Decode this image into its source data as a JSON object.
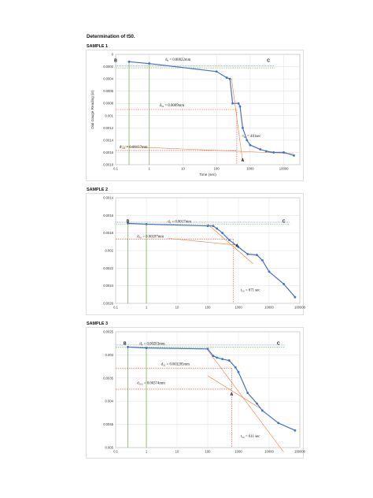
{
  "document": {
    "title": "Determination of t50.",
    "samples": [
      "SAMPLE 1",
      "SAMPLE 2",
      "SAMPLE 3"
    ]
  },
  "colors": {
    "data": "#4472c4",
    "tangent": "#ed7d31",
    "guide": "#70ad47",
    "hline": "#e0443c"
  },
  "chart_data": [
    {
      "type": "line",
      "xscale": "log",
      "xlim": [
        0.1,
        30000
      ],
      "ylim": [
        0,
        0.0018
      ],
      "y_inverted": true,
      "xticks": [
        "0.1",
        "1",
        "10",
        "100",
        "1000",
        "10000"
      ],
      "yticks": [
        "0",
        "0.0002",
        "0.0004",
        "0.0006",
        "0.0008",
        "0.001",
        "0.0012",
        "0.0014",
        "0.0016",
        "0.0018"
      ],
      "xlabel": "Time (sec)",
      "ylabel": "Dial Gauge Reading (in)",
      "x": [
        0.25,
        1,
        100,
        200,
        250,
        300,
        450,
        500,
        600,
        800,
        1000,
        2000,
        3000,
        5000,
        10000,
        20000
      ],
      "y": [
        0.00012,
        0.00015,
        0.00028,
        0.00038,
        0.0004,
        0.0008,
        0.0008,
        0.00085,
        0.0012,
        0.0014,
        0.00148,
        0.00155,
        0.00158,
        0.0016,
        0.0016,
        0.00165
      ],
      "annotations": [
        {
          "text": "d₀ = 0.00022mm",
          "x": 3,
          "y": 0.0001
        },
        {
          "text": "d₅₀ = 0.0009mm",
          "x": 2,
          "y": 0.00085
        },
        {
          "text": "t₅₀ = 401sec",
          "x": 600,
          "y": 0.00135
        },
        {
          "text": "d₁₀₀ = 0.00157mm",
          "x": 0.13,
          "y": 0.00153
        }
      ],
      "points": {
        "B": [
          0.1,
          0.00012
        ],
        "C": [
          3500,
          0.00012
        ],
        "A": [
          600,
          0.00175
        ]
      },
      "guides": {
        "green_x": [
          0.25,
          1
        ],
        "hlines_y": [
          0.00022,
          0.0009,
          0.00157
        ],
        "t50_x": 401
      }
    },
    {
      "type": "line",
      "xscale": "log",
      "xlim": [
        0.1,
        100000
      ],
      "ylim": [
        0.0014,
        0.0026
      ],
      "y_inverted": true,
      "xticks": [
        "0.1",
        "1",
        "10",
        "100",
        "1000",
        "10000",
        "100000"
      ],
      "yticks": [
        "0.0014",
        "0.0016",
        "0.0018",
        "0.002",
        "0.0022",
        "0.0024",
        "0.0026"
      ],
      "xlabel": "",
      "ylabel": "",
      "x": [
        0.25,
        1,
        100,
        150,
        200,
        300,
        500,
        1000,
        2000,
        4000,
        6000,
        10000,
        30000,
        70000
      ],
      "y": [
        0.00169,
        0.0017,
        0.00172,
        0.00172,
        0.00175,
        0.0018,
        0.00188,
        0.00196,
        0.00204,
        0.00205,
        0.00211,
        0.00224,
        0.00238,
        0.00253
      ],
      "annotations": [
        {
          "text": "d₀ = 0.0017mm",
          "x": 5,
          "y": 0.00168
        },
        {
          "text": "d₅₀ = 0.00187mm",
          "x": 0.5,
          "y": 0.00185
        },
        {
          "text": "t₅₀ = 671 sec",
          "x": 1200,
          "y": 0.00246
        }
      ],
      "points": {
        "B": [
          0.25,
          0.00168
        ],
        "C": [
          30000,
          0.00168
        ],
        "A": [
          900,
          0.00196
        ]
      },
      "guides": {
        "green_x": [
          0.25,
          1
        ],
        "hlines_y": [
          0.0017,
          0.00187
        ],
        "t50_x": 671
      }
    },
    {
      "type": "line",
      "xscale": "log",
      "xlim": [
        0.1,
        100000
      ],
      "ylim": [
        0.0025,
        0.005
      ],
      "y_inverted": true,
      "xticks": [
        "0.1",
        "1",
        "10",
        "100",
        "1000",
        "10000",
        "100000"
      ],
      "yticks": [
        "0.0025",
        "0.003",
        "0.0035",
        "0.004",
        "0.0045",
        "0.005"
      ],
      "xlabel": "",
      "ylabel": "",
      "x": [
        0.25,
        1,
        100,
        150,
        200,
        300,
        500,
        800,
        1000,
        2000,
        4000,
        6000,
        20000,
        70000
      ],
      "y": [
        0.00283,
        0.00285,
        0.00287,
        0.00302,
        0.00306,
        0.00309,
        0.00312,
        0.00327,
        0.00337,
        0.00382,
        0.00405,
        0.0042,
        0.00447,
        0.00463
      ],
      "annotations": [
        {
          "text": "d₀ = 0.00283mm",
          "x": 0.6,
          "y": 0.00278
        },
        {
          "text": "d₅₀ = 0.003285mm",
          "x": 3,
          "y": 0.00322
        },
        {
          "text": "d₁₀₀ = 0.00374mm",
          "x": 0.5,
          "y": 0.00363
        },
        {
          "text": "t₅₀ = 611 sec",
          "x": 1200,
          "y": 0.00478
        }
      ],
      "points": {
        "B": [
          0.2,
          0.00278
        ],
        "C": [
          20000,
          0.00278
        ],
        "A": [
          600,
          0.00388
        ]
      },
      "guides": {
        "green_x": [
          0.25,
          1
        ],
        "hlines_y": [
          0.00283,
          0.003285,
          0.00374
        ],
        "t50_x": 611
      }
    }
  ]
}
